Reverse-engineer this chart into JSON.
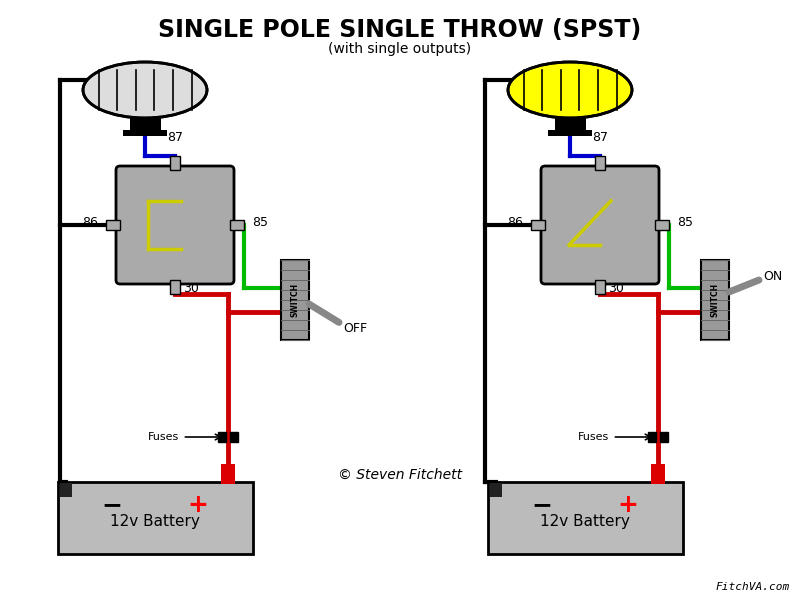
{
  "title": "SINGLE POLE SINGLE THROW (SPST)",
  "subtitle": "(with single outputs)",
  "copyright": "© Steven Fitchett",
  "watermark": "FitchVA.com",
  "bg_color": "#ffffff",
  "relay_color": "#aaaaaa",
  "battery_color": "#bbbbbb",
  "switch_color": "#999999",
  "wire_black": "#000000",
  "wire_red": "#cc0000",
  "wire_blue": "#0000cc",
  "wire_green": "#00bb00",
  "wire_yellow": "#dddd00",
  "lamp_off_fill": "#dddddd",
  "lamp_on_fill": "#ffff00",
  "lw": 2.5,
  "pin_color": "#aaaaaa",
  "switch_label": "SWITCH",
  "fuse_label": "Fuses",
  "battery_label": "12v Battery",
  "off_label": "OFF",
  "on_label": "ON",
  "red_terminal_color": "#dd0000",
  "black_terminal_color": "#222222"
}
